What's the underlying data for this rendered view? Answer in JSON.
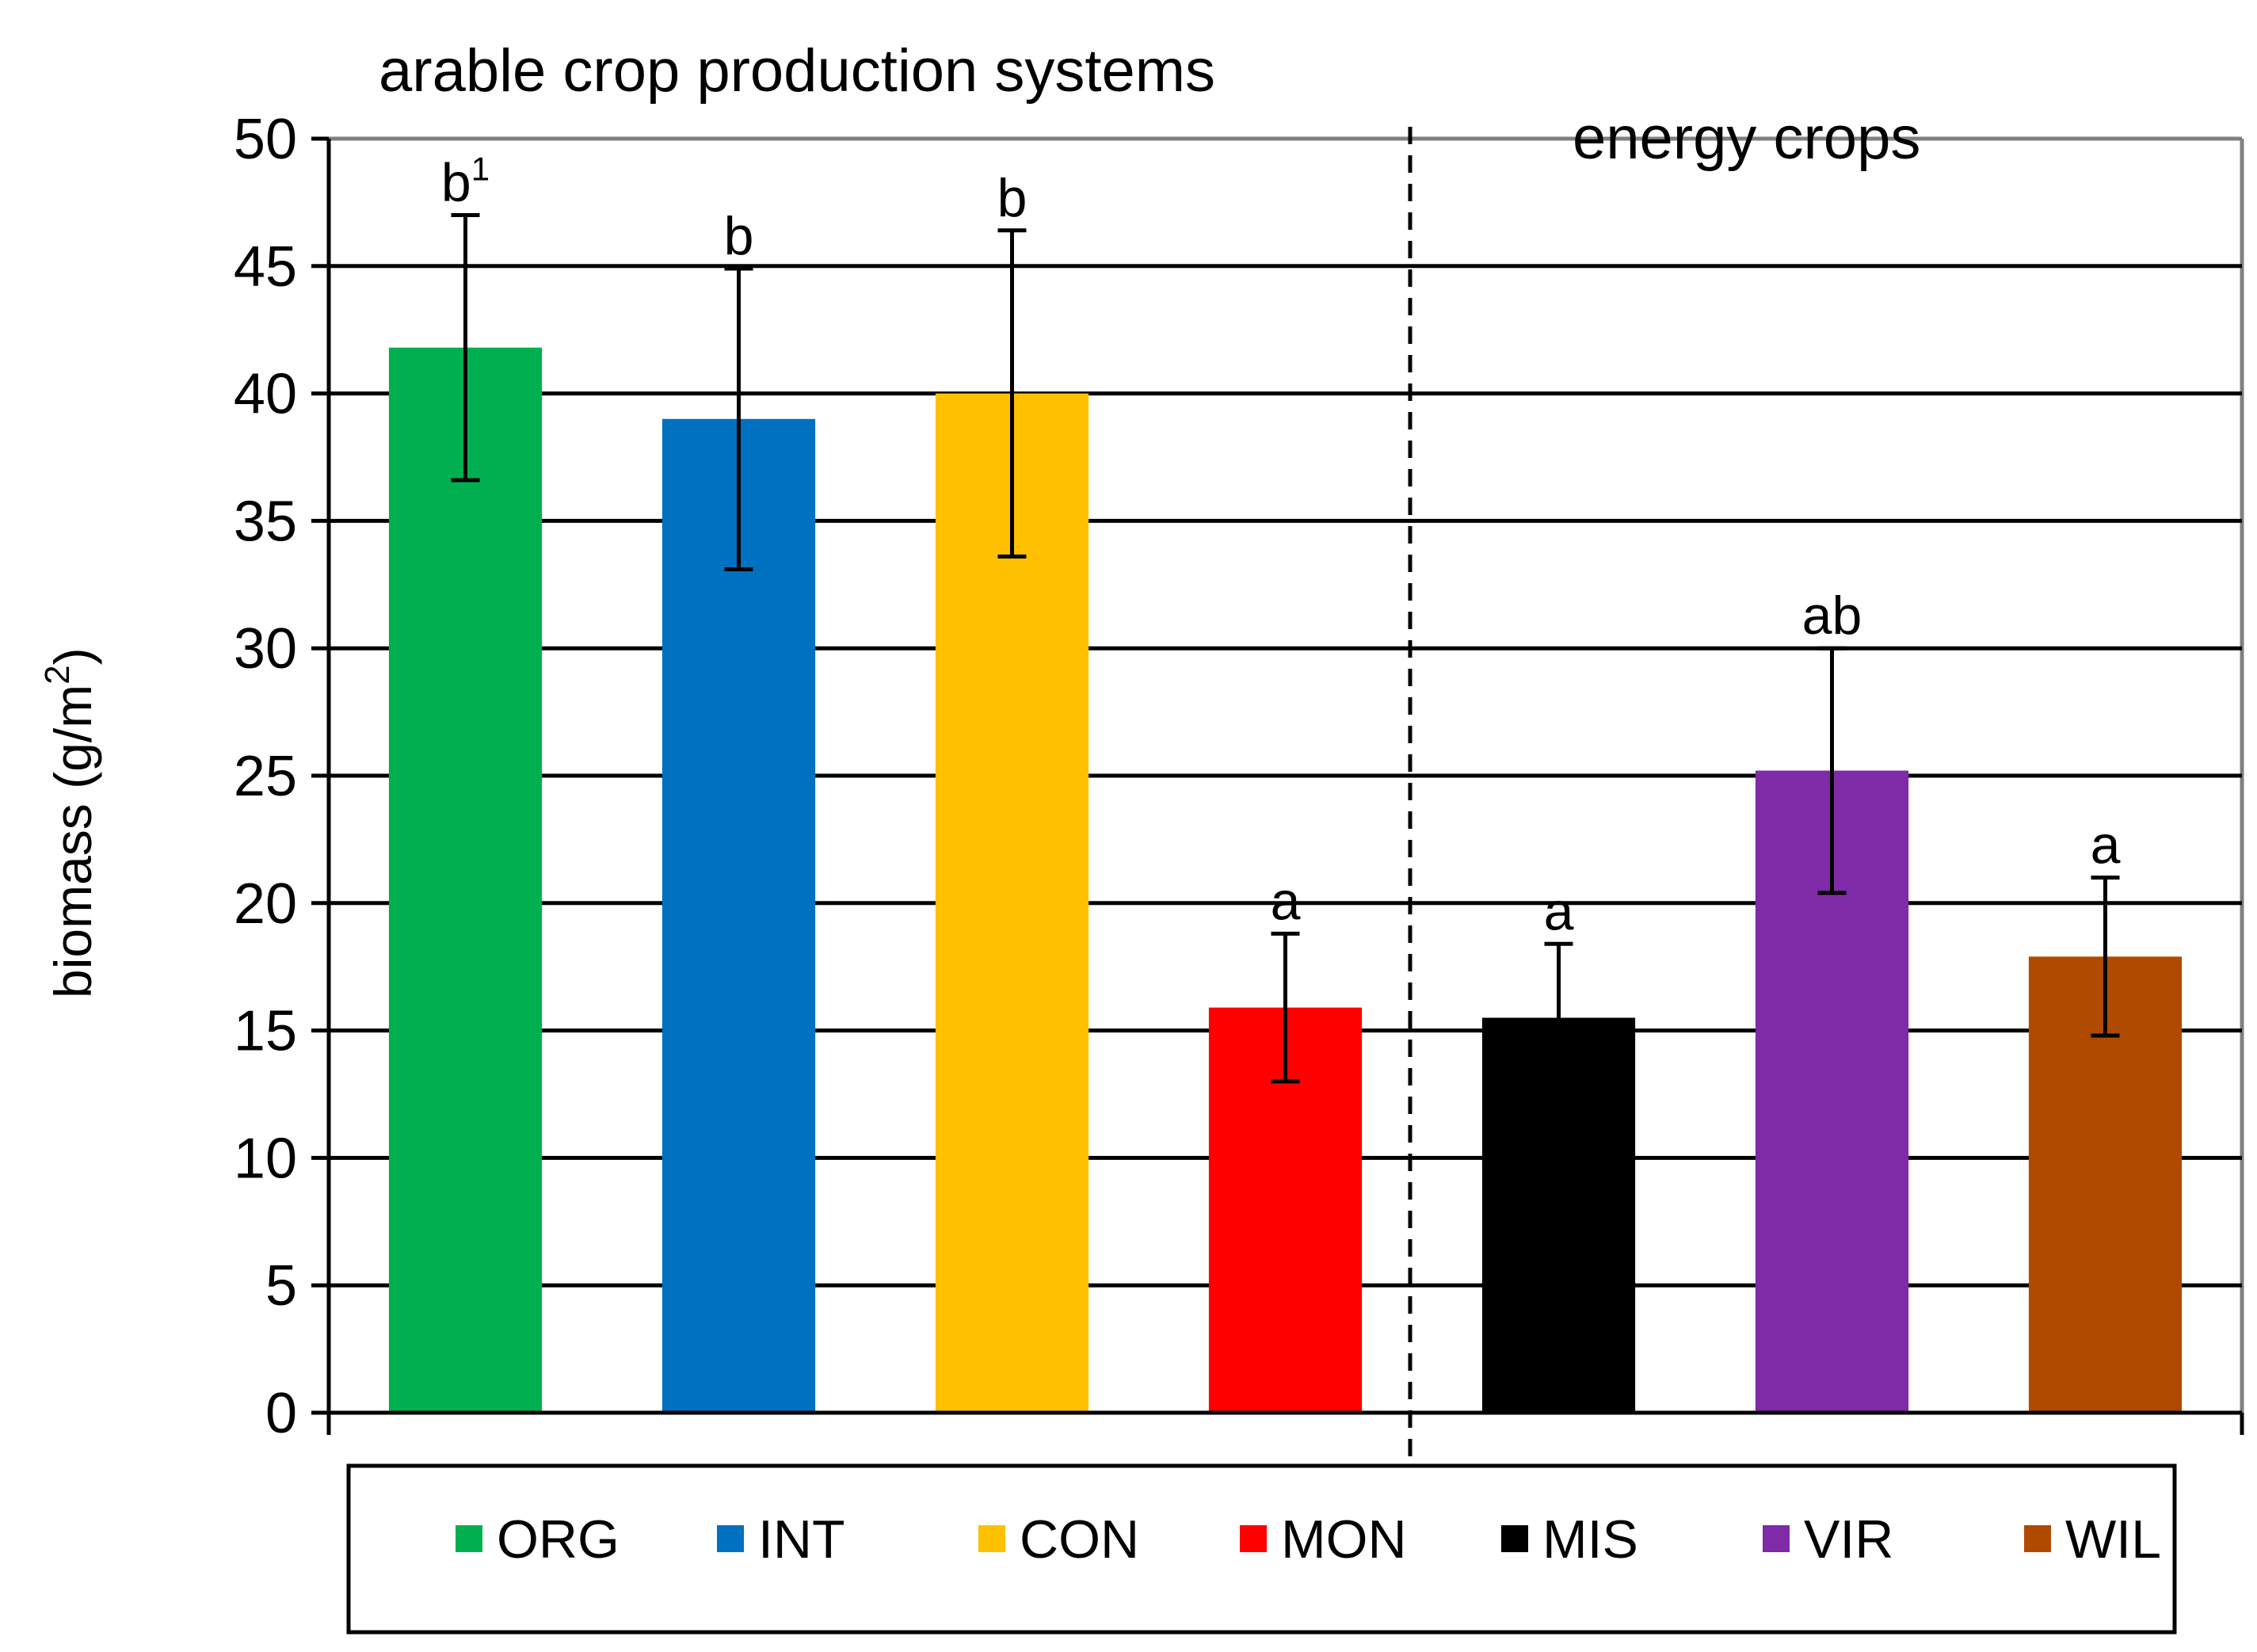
{
  "chart_data": {
    "type": "bar",
    "title": "",
    "xlabel": "",
    "ylabel": "biomass (g/m",
    "ylabel_sup": "2",
    "ylabel_close": ")",
    "ylim": [
      0,
      50
    ],
    "yticks": [
      0,
      5,
      10,
      15,
      20,
      25,
      30,
      35,
      40,
      45,
      50
    ],
    "grid": true,
    "legend_position": "bottom",
    "sections": [
      {
        "label": "arable crop production systems",
        "categories": [
          "ORG",
          "INT",
          "CON",
          "MON"
        ]
      },
      {
        "label": "energy crops",
        "categories": [
          "MIS",
          "VIR",
          "WIL"
        ]
      }
    ],
    "categories": [
      "ORG",
      "INT",
      "CON",
      "MON",
      "MIS",
      "VIR",
      "WIL"
    ],
    "values": [
      41.8,
      39.0,
      40.0,
      15.9,
      15.5,
      25.2,
      17.9
    ],
    "error": [
      5.2,
      5.9,
      6.4,
      2.9,
      2.9,
      4.8,
      3.1
    ],
    "significance": [
      "b",
      "b",
      "b",
      "a",
      "a",
      "ab",
      "a"
    ],
    "significance_footnote": [
      "1",
      "",
      "",
      "",
      "",
      "",
      ""
    ],
    "colors": [
      "#00b050",
      "#0070c0",
      "#ffc000",
      "#ff0000",
      "#000000",
      "#7f2aa6",
      "#b04a00"
    ]
  }
}
